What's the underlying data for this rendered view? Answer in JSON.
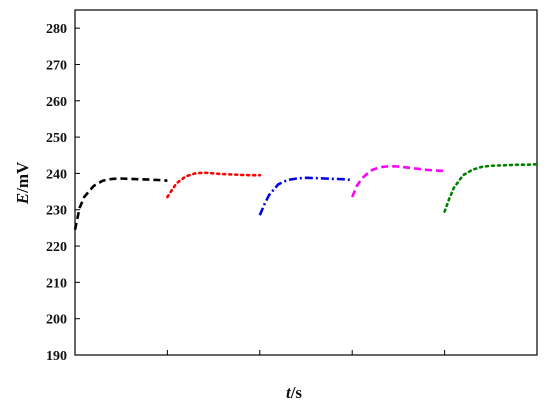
{
  "chart_data": {
    "type": "line",
    "title": "",
    "xlabel": {
      "symbol": "t",
      "unit": "/s"
    },
    "ylabel": {
      "symbol": "E",
      "unit": "/mV"
    },
    "ylim": [
      190,
      285
    ],
    "yticks": [
      190,
      200,
      210,
      220,
      230,
      240,
      250,
      260,
      270,
      280
    ],
    "xlim": [
      0,
      5
    ],
    "x_tick_labels_shown": false,
    "grid": false,
    "legend": "none",
    "series": [
      {
        "color": "#000000",
        "dash": "dash",
        "x": [
          0.0,
          0.05,
          0.1,
          0.2,
          0.3,
          0.4,
          0.5,
          0.6,
          0.7,
          0.8,
          0.9,
          1.0
        ],
        "y": [
          224.5,
          230.5,
          233.5,
          236.5,
          238.0,
          238.5,
          238.6,
          238.5,
          238.4,
          238.3,
          238.2,
          238.0
        ]
      },
      {
        "color": "#ff0000",
        "dash": "dot",
        "x": [
          1.0,
          1.05,
          1.1,
          1.2,
          1.3,
          1.4,
          1.5,
          1.6,
          1.7,
          1.8,
          1.9,
          2.0
        ],
        "y": [
          233.5,
          235.5,
          237.3,
          239.2,
          240.0,
          240.2,
          240.0,
          239.8,
          239.7,
          239.6,
          239.5,
          239.5
        ]
      },
      {
        "color": "#0000ee",
        "dash": "dashdot",
        "x": [
          2.0,
          2.05,
          2.1,
          2.2,
          2.3,
          2.4,
          2.5,
          2.6,
          2.7,
          2.8,
          2.9,
          3.0
        ],
        "y": [
          228.5,
          231.5,
          234.0,
          237.0,
          238.2,
          238.6,
          238.8,
          238.7,
          238.6,
          238.5,
          238.4,
          238.2
        ]
      },
      {
        "color": "#ff00ff",
        "dash": "dash",
        "x": [
          3.0,
          3.05,
          3.1,
          3.2,
          3.3,
          3.4,
          3.5,
          3.6,
          3.7,
          3.8,
          3.9,
          4.0
        ],
        "y": [
          233.5,
          236.5,
          238.5,
          240.8,
          241.7,
          242.0,
          241.9,
          241.6,
          241.3,
          241.0,
          240.8,
          240.7
        ]
      },
      {
        "color": "#008000",
        "dash": "dot",
        "x": [
          4.0,
          4.05,
          4.1,
          4.2,
          4.3,
          4.4,
          4.5,
          4.6,
          4.7,
          4.8,
          4.9,
          5.0
        ],
        "y": [
          229.5,
          233.0,
          236.0,
          239.5,
          241.0,
          241.8,
          242.1,
          242.2,
          242.3,
          242.4,
          242.4,
          242.5
        ]
      }
    ]
  }
}
